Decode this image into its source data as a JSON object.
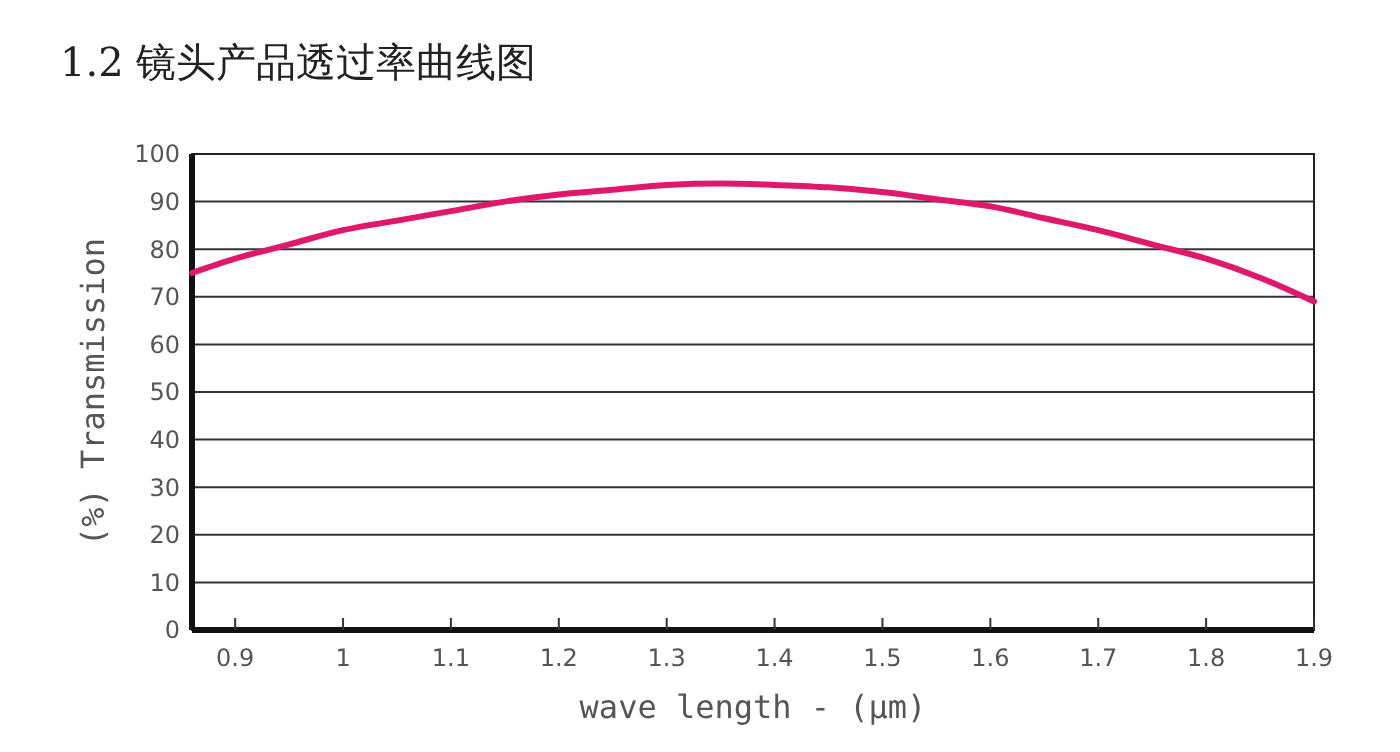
{
  "chart_data": {
    "type": "line",
    "title": "1.2 镜头产品透过率曲线图",
    "xlabel": "wave length - (μm)",
    "ylabel": "(%) Transmission",
    "x": [
      0.86,
      0.9,
      0.95,
      1.0,
      1.05,
      1.1,
      1.15,
      1.2,
      1.25,
      1.3,
      1.35,
      1.4,
      1.45,
      1.5,
      1.55,
      1.6,
      1.65,
      1.7,
      1.75,
      1.8,
      1.85,
      1.9
    ],
    "series": [
      {
        "color": "#e0186c",
        "values": [
          75,
          78,
          81,
          84,
          86,
          88,
          90,
          91.5,
          92.5,
          93.5,
          93.8,
          93.5,
          93,
          92,
          90.5,
          89,
          86.5,
          84,
          81,
          78,
          74,
          69
        ]
      }
    ],
    "xlim": [
      0.86,
      1.9
    ],
    "xticks": [
      0.9,
      1,
      1.1,
      1.2,
      1.3,
      1.4,
      1.5,
      1.6,
      1.7,
      1.8,
      1.9
    ],
    "ylim": [
      0,
      100
    ],
    "yticks": [
      0,
      10,
      20,
      30,
      40,
      50,
      60,
      70,
      80,
      90,
      100
    ],
    "grid": "y",
    "marker": "none",
    "line_style": "solid"
  }
}
